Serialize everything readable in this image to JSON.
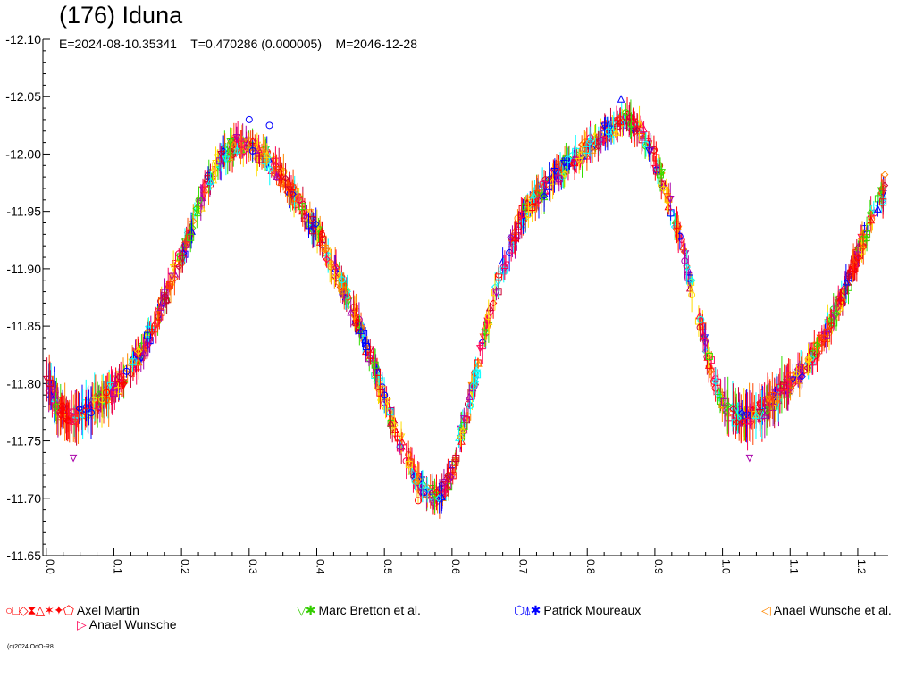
{
  "chart_data": {
    "type": "scatter",
    "title": "(176) Iduna",
    "subtitle": "E=2024-08-10.35341    T=0.470286 (0.000005)    M=2046-12-28",
    "xlabel": "",
    "ylabel": "",
    "xlim": [
      -0.005,
      1.245
    ],
    "ylim": [
      -12.1,
      -11.65
    ],
    "y_inverted": true,
    "grid": false,
    "x_ticks": [
      "0.0",
      "0.1",
      "0.2",
      "0.3",
      "0.4",
      "0.5",
      "0.6",
      "0.7",
      "0.8",
      "0.9",
      "1.0",
      "1.1",
      "1.2"
    ],
    "x_tick_values": [
      0.0,
      0.1,
      0.2,
      0.3,
      0.4,
      0.5,
      0.6,
      0.7,
      0.8,
      0.9,
      1.0,
      1.1,
      1.2
    ],
    "y_ticks": [
      "-12.10",
      "-12.05",
      "-12.00",
      "-11.95",
      "-11.90",
      "-11.85",
      "-11.80",
      "-11.75",
      "-11.70",
      "-11.65"
    ],
    "y_tick_values": [
      -12.1,
      -12.05,
      -12.0,
      -11.95,
      -11.9,
      -11.85,
      -11.8,
      -11.75,
      -11.7,
      -11.65
    ],
    "curve": {
      "x": [
        0.0,
        0.02,
        0.04,
        0.06,
        0.08,
        0.1,
        0.12,
        0.14,
        0.16,
        0.18,
        0.2,
        0.22,
        0.24,
        0.26,
        0.28,
        0.3,
        0.32,
        0.34,
        0.36,
        0.38,
        0.4,
        0.42,
        0.44,
        0.46,
        0.48,
        0.5,
        0.52,
        0.54,
        0.56,
        0.58,
        0.6,
        0.62,
        0.64,
        0.66,
        0.68,
        0.7,
        0.72,
        0.74,
        0.76,
        0.78,
        0.8,
        0.82,
        0.84,
        0.86,
        0.88,
        0.9,
        0.92,
        0.94,
        0.96,
        0.98,
        1.0,
        1.02,
        1.04,
        1.06,
        1.08,
        1.1,
        1.12,
        1.14,
        1.16,
        1.18,
        1.2,
        1.22,
        1.24
      ],
      "y": [
        -11.805,
        -11.775,
        -11.772,
        -11.778,
        -11.785,
        -11.795,
        -11.808,
        -11.828,
        -11.852,
        -11.882,
        -11.912,
        -11.945,
        -11.975,
        -11.998,
        -12.008,
        -12.007,
        -12.0,
        -11.988,
        -11.97,
        -11.952,
        -11.932,
        -11.908,
        -11.882,
        -11.855,
        -11.822,
        -11.785,
        -11.755,
        -11.725,
        -11.705,
        -11.7,
        -11.722,
        -11.77,
        -11.82,
        -11.87,
        -11.91,
        -11.942,
        -11.958,
        -11.972,
        -11.985,
        -11.996,
        -12.005,
        -12.015,
        -12.024,
        -12.03,
        -12.02,
        -11.995,
        -11.96,
        -11.92,
        -11.87,
        -11.82,
        -11.782,
        -11.772,
        -11.772,
        -11.778,
        -11.788,
        -11.8,
        -11.812,
        -11.83,
        -11.852,
        -11.88,
        -11.912,
        -11.945,
        -11.968
      ]
    },
    "series": [
      {
        "name": "Axel Martin",
        "symbols": [
          "circle",
          "square",
          "diamond",
          "hourglass",
          "triangle-up",
          "star6",
          "star4",
          "pentagon"
        ],
        "colors": [
          "#ff0000",
          "#00dd00",
          "#ffdd00",
          "#0000ff",
          "#ff00ff",
          "#00ffff",
          "#ff8800",
          "#ff0000"
        ]
      },
      {
        "name": "Marc Bretton et al.",
        "symbols": [
          "triangle-down",
          "star"
        ],
        "colors": [
          "#44dd00",
          "#ffee00"
        ]
      },
      {
        "name": "Patrick Moureaux",
        "symbols": [
          "hexagon",
          "triangle-star",
          "star"
        ],
        "colors": [
          "#0000ff",
          "#aa00aa",
          "#00ffff"
        ]
      },
      {
        "name": "Anael Wunsche et al.",
        "symbols": [
          "triangle-left"
        ],
        "colors": [
          "#ff8800"
        ]
      },
      {
        "name": "Anael Wunsche",
        "symbols": [
          "triangle-right"
        ],
        "colors": [
          "#ff0055"
        ]
      }
    ]
  },
  "legend": {
    "axel_symbols": "○□◇⧗△✶✦⬠",
    "bretton_symbols": "▽✱",
    "moureaux_symbols": "⬡⍋✱",
    "wunsche_al_symbols": "◁",
    "wunsche_symbols": "▷"
  },
  "footer": {
    "copyright": "(c)2024 OdO-R8"
  }
}
